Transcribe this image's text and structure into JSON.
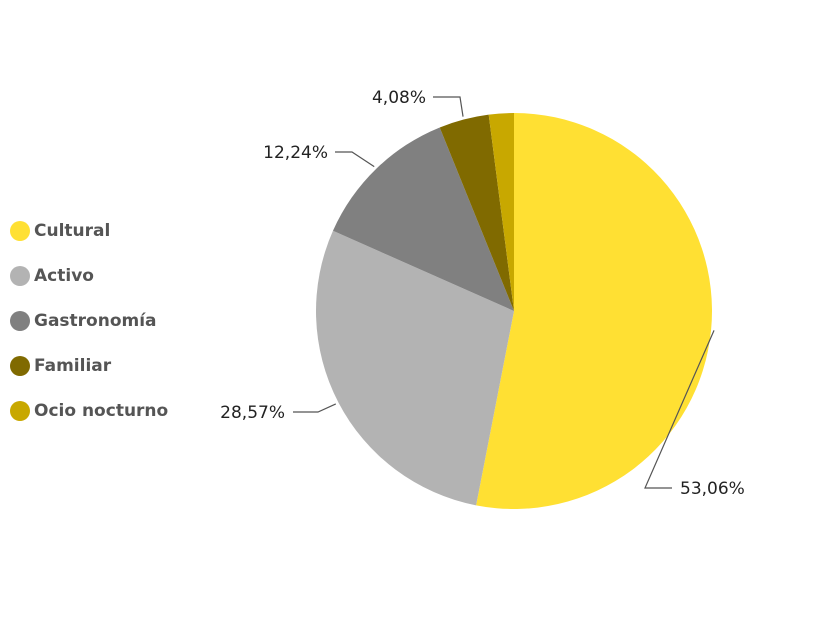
{
  "chart_data": {
    "type": "pie",
    "categories": [
      "Cultural",
      "Activo",
      "Gastronomía",
      "Familiar",
      "Ocio nocturno"
    ],
    "values": [
      53.06,
      28.57,
      12.24,
      4.08,
      2.04
    ],
    "data_labels": [
      "53,06%",
      "28,57%",
      "12,24%",
      "4,08%",
      ""
    ],
    "colors": [
      "#FFE033",
      "#B3B3B3",
      "#808080",
      "#806A00",
      "#C8A800"
    ],
    "start_angle_deg": 0,
    "direction": "clockwise",
    "legend_position": "left"
  }
}
